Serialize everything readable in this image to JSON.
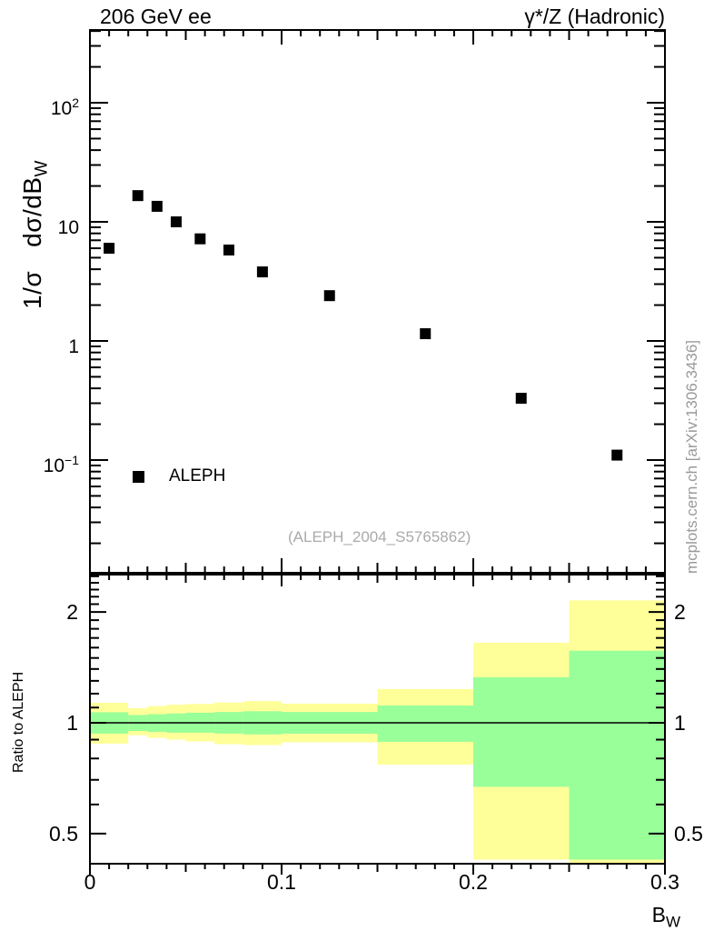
{
  "header": {
    "title_left": "206 GeV ee",
    "title_right": "γ*/Z (Hadronic)"
  },
  "labels": {
    "ylabel_pre1": "1/σ",
    "ylabel_pre2": "dσ/dB",
    "ylabel_sub": "W",
    "xlabel_base": "B",
    "xlabel_sub": "W",
    "ratio_ylabel": "Ratio to ALEPH"
  },
  "legend": {
    "label": "ALEPH",
    "marker": "filled-black-square"
  },
  "watermark": "(ALEPH_2004_S5765862)",
  "side_note": "mcplots.cern.ch [arXiv:1306.3436]",
  "colors": {
    "marker": "#000000",
    "frame": "#000000",
    "band_outer": "#ffff99",
    "band_inner": "#99ff99",
    "gray_text": "#999999",
    "watermark_gray": "#aaaaaa"
  },
  "axis": {
    "x_tick_labels": [
      "0",
      "0.1",
      "0.2",
      "0.3"
    ],
    "y_tick_labels_main": [
      {
        "base": "10",
        "exp": "2"
      },
      {
        "base": "10",
        "exp": ""
      },
      {
        "base": "1",
        "exp": ""
      },
      {
        "base": "10",
        "exp": "−1"
      }
    ],
    "ratio_tick_labels": [
      "2",
      "1",
      "0.5"
    ]
  },
  "chart_data": [
    {
      "type": "scatter",
      "panel": "main",
      "title": "206 GeV ee — γ*/Z (Hadronic)",
      "xlabel": "B_W",
      "ylabel": "1/σ dσ/dB_W",
      "xscale": "linear",
      "yscale": "log",
      "xlim": [
        0,
        0.3
      ],
      "ylim": [
        0.0115,
        405
      ],
      "x_major_ticks": [
        0,
        0.1,
        0.2,
        0.3
      ],
      "y_major_ticks": [
        0.1,
        1,
        10,
        100
      ],
      "grid": false,
      "legend_position": "lower-left",
      "series": [
        {
          "name": "ALEPH",
          "marker": "filled-square",
          "color": "#000000",
          "x": [
            0.01,
            0.025,
            0.035,
            0.045,
            0.0575,
            0.0725,
            0.09,
            0.125,
            0.175,
            0.225,
            0.275
          ],
          "y": [
            6.0,
            16.6,
            13.5,
            10.0,
            7.2,
            5.8,
            3.8,
            2.4,
            1.15,
            0.33,
            0.11
          ]
        }
      ]
    },
    {
      "type": "area",
      "panel": "ratio",
      "title": "Ratio to ALEPH",
      "xlabel": "B_W",
      "ylabel": "Ratio to ALEPH",
      "yscale": "log",
      "xlim": [
        0,
        0.3
      ],
      "ylim": [
        0.41,
        2.53
      ],
      "y_major_ticks": [
        0.5,
        1,
        2
      ],
      "reference_line": 1,
      "bin_edges": [
        0,
        0.02,
        0.03,
        0.04,
        0.05,
        0.065,
        0.08,
        0.1,
        0.15,
        0.2,
        0.25,
        0.3
      ],
      "bands": {
        "outer_color": "#ffff99",
        "inner_color": "#99ff99",
        "outer": [
          [
            0.878,
            1.133
          ],
          [
            0.925,
            1.095
          ],
          [
            0.91,
            1.11
          ],
          [
            0.9,
            1.12
          ],
          [
            0.89,
            1.125
          ],
          [
            0.875,
            1.135
          ],
          [
            0.87,
            1.145
          ],
          [
            0.885,
            1.127
          ],
          [
            0.77,
            1.235
          ],
          [
            0.425,
            1.65
          ],
          [
            0.35,
            2.15
          ]
        ],
        "inner": [
          [
            0.935,
            1.068
          ],
          [
            0.95,
            1.05
          ],
          [
            0.945,
            1.055
          ],
          [
            0.94,
            1.06
          ],
          [
            0.94,
            1.065
          ],
          [
            0.935,
            1.07
          ],
          [
            0.93,
            1.075
          ],
          [
            0.934,
            1.07
          ],
          [
            0.888,
            1.114
          ],
          [
            0.67,
            1.33
          ],
          [
            0.425,
            1.57
          ]
        ]
      }
    }
  ]
}
